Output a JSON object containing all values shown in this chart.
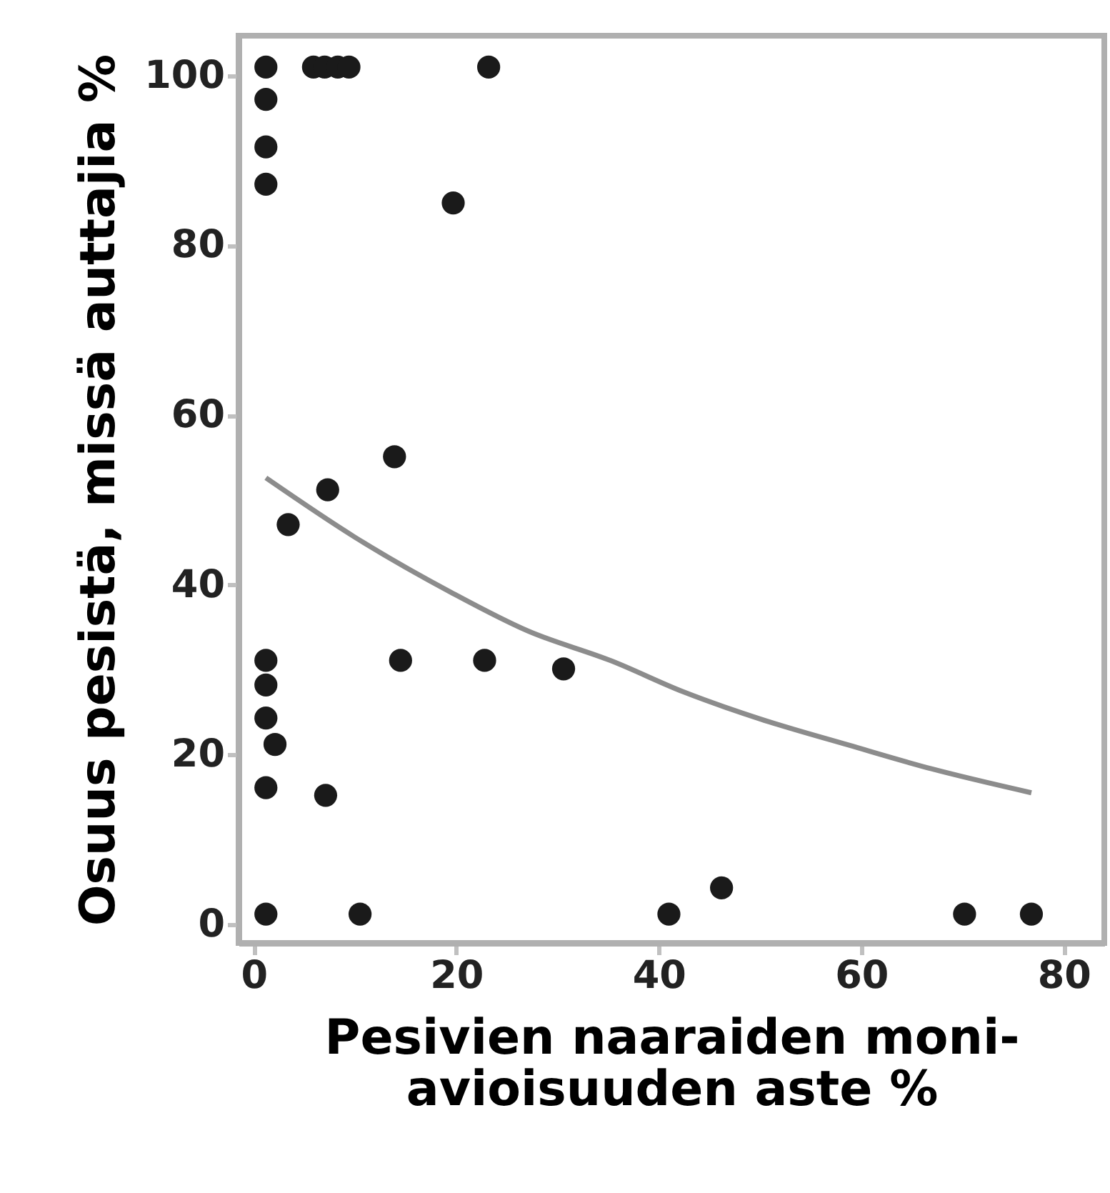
{
  "chart_data": {
    "type": "scatter",
    "xlabel": "Pesivien naaraiden moni-\navioisuuden aste %",
    "ylabel": "Osuus pesistä, missä auttajia %",
    "xlim": [
      -1.5,
      84
    ],
    "ylim": [
      -2.2,
      104.7
    ],
    "xticks": [
      0,
      20,
      40,
      60,
      80
    ],
    "yticks": [
      0,
      20,
      40,
      60,
      80,
      100
    ],
    "grid": false,
    "series": [
      {
        "color": "#1a1a1a",
        "marker": "circle",
        "x": [
          1.2,
          5.9,
          7.0,
          8.3,
          9.4,
          23.2,
          1.2,
          1.2,
          1.2,
          19.7,
          13.9,
          7.3,
          3.4,
          1.2,
          1.2,
          1.2,
          2.1,
          1.2,
          7.1,
          14.5,
          22.8,
          30.6,
          1.2,
          10.5,
          41.0,
          46.2,
          70.2,
          76.8
        ],
        "values": [
          101,
          101,
          101,
          101,
          101,
          101,
          97.2,
          91.6,
          87.2,
          85.0,
          55.1,
          51.2,
          47.1,
          31.1,
          28.2,
          24.3,
          21.2,
          16.1,
          15.2,
          31.1,
          31.1,
          30.1,
          1.2,
          1.2,
          1.2,
          4.3,
          1.2,
          1.2
        ]
      },
      {
        "type": "line",
        "color": "#8c8c8c",
        "marker": "none",
        "x": [
          1.2,
          10,
          19.5,
          27,
          35.4,
          42.4,
          50,
          58.8,
          67,
          76.8
        ],
        "values": [
          52.6,
          45.6,
          39.1,
          34.6,
          31.0,
          27.4,
          24.2,
          21.1,
          18.3,
          15.5
        ]
      }
    ]
  }
}
